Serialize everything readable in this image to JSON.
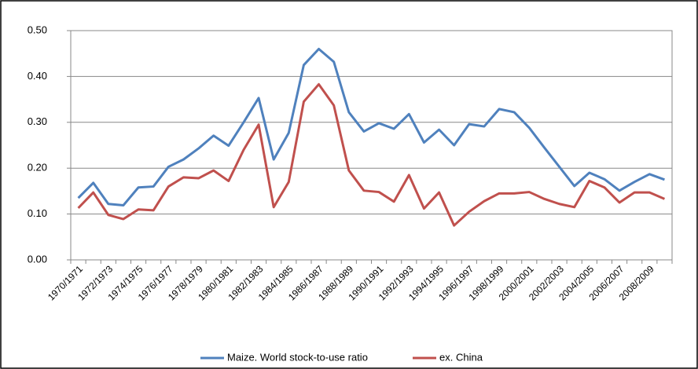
{
  "chart_data": {
    "type": "line",
    "categories": [
      "1970/1971",
      null,
      "1972/1973",
      null,
      "1974/1975",
      null,
      "1976/1977",
      null,
      "1978/1979",
      null,
      "1980/1981",
      null,
      "1982/1983",
      null,
      "1984/1985",
      null,
      "1986/1987",
      null,
      "1988/1989",
      null,
      "1990/1991",
      null,
      "1992/1993",
      null,
      "1994/1995",
      null,
      "1996/1997",
      null,
      "1998/1999",
      null,
      "2000/2001",
      null,
      "2002/2003",
      null,
      "2004/2005",
      null,
      "2006/2007",
      null,
      "2008/2009",
      null
    ],
    "series": [
      {
        "name": "Maize. World stock-to-use ratio",
        "color": "#4f81bd",
        "values": [
          0.135,
          0.168,
          0.122,
          0.119,
          0.158,
          0.16,
          0.203,
          0.219,
          0.243,
          0.271,
          0.249,
          0.3,
          0.353,
          0.219,
          0.277,
          0.425,
          0.46,
          0.432,
          0.322,
          0.28,
          0.298,
          0.286,
          0.318,
          0.256,
          0.284,
          0.25,
          0.296,
          0.291,
          0.329,
          0.322,
          0.288,
          0.245,
          0.203,
          0.161,
          0.19,
          0.176,
          0.151,
          0.17,
          0.187,
          0.175
        ]
      },
      {
        "name": "ex. China",
        "color": "#c0504d",
        "values": [
          0.113,
          0.147,
          0.098,
          0.089,
          0.11,
          0.108,
          0.16,
          0.18,
          0.178,
          0.195,
          0.172,
          0.24,
          0.295,
          0.115,
          0.17,
          0.345,
          0.383,
          0.337,
          0.195,
          0.151,
          0.148,
          0.127,
          0.185,
          0.112,
          0.147,
          0.075,
          0.105,
          0.128,
          0.145,
          0.145,
          0.148,
          0.133,
          0.122,
          0.115,
          0.172,
          0.158,
          0.125,
          0.147,
          0.147,
          0.133
        ]
      }
    ],
    "ylim": [
      0,
      0.5
    ],
    "yticks": [
      {
        "value": 0,
        "label": "0.00"
      },
      {
        "value": 0.1,
        "label": "0.10"
      },
      {
        "value": 0.2,
        "label": "0.20"
      },
      {
        "value": 0.3,
        "label": "0.30"
      },
      {
        "value": 0.4,
        "label": "0.40"
      },
      {
        "value": 0.5,
        "label": "0.50"
      }
    ],
    "grid": true,
    "legend": "bottom"
  }
}
